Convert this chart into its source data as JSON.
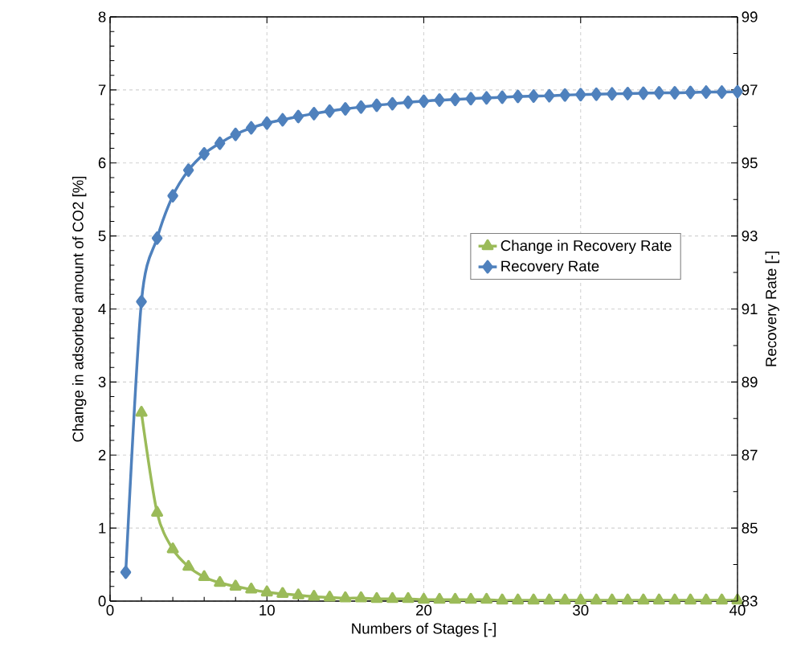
{
  "chart_data": {
    "type": "line",
    "xlabel": "Numbers of Stages [-]",
    "ylabel": "Change in adsorbed amount of CO2 [%]",
    "y2label": "Recovery Rate [-]",
    "x": [
      1,
      2,
      3,
      4,
      5,
      6,
      7,
      8,
      9,
      10,
      11,
      12,
      13,
      14,
      15,
      16,
      17,
      18,
      19,
      20,
      21,
      22,
      23,
      24,
      25,
      26,
      27,
      28,
      29,
      30,
      31,
      32,
      33,
      34,
      35,
      36,
      37,
      38,
      39,
      40
    ],
    "series": [
      {
        "name": "Change in Recovery Rate",
        "color": "#9bbb59",
        "marker": "triangle",
        "values": [
          null,
          2.58,
          1.21,
          0.71,
          0.47,
          0.33,
          0.25,
          0.2,
          0.16,
          0.12,
          0.1,
          0.08,
          0.06,
          0.05,
          0.04,
          0.04,
          0.03,
          0.03,
          0.03,
          0.02,
          0.02,
          0.02,
          0.02,
          0.02,
          0.01,
          0.01,
          0.01,
          0.01,
          0.01,
          0.01,
          0.01,
          0.01,
          0.01,
          0.01,
          0.01,
          0.01,
          0.01,
          0.01,
          0.01,
          0.01
        ]
      },
      {
        "name": "Recovery Rate",
        "color": "#4f81bd",
        "marker": "diamond",
        "axis": "y2",
        "values": [
          83.79,
          91.2,
          92.94,
          94.1,
          94.8,
          95.25,
          95.54,
          95.78,
          95.96,
          96.09,
          96.18,
          96.27,
          96.35,
          96.42,
          96.48,
          96.53,
          96.58,
          96.62,
          96.66,
          96.69,
          96.72,
          96.74,
          96.76,
          96.78,
          96.8,
          96.82,
          96.83,
          96.84,
          96.86,
          96.87,
          96.88,
          96.89,
          96.9,
          96.91,
          96.92,
          96.92,
          96.93,
          96.94,
          96.94,
          96.95
        ]
      }
    ],
    "xlim": [
      0,
      40
    ],
    "xticks": [
      0,
      10,
      20,
      30,
      40
    ],
    "ylim": [
      0,
      8
    ],
    "yticks": [
      0,
      1,
      2,
      3,
      4,
      5,
      6,
      7,
      8
    ],
    "y2lim": [
      83,
      99
    ],
    "y2ticks": [
      83,
      85,
      87,
      89,
      91,
      93,
      95,
      97,
      99
    ],
    "grid": true,
    "legend": "right",
    "line_style": "solid"
  }
}
